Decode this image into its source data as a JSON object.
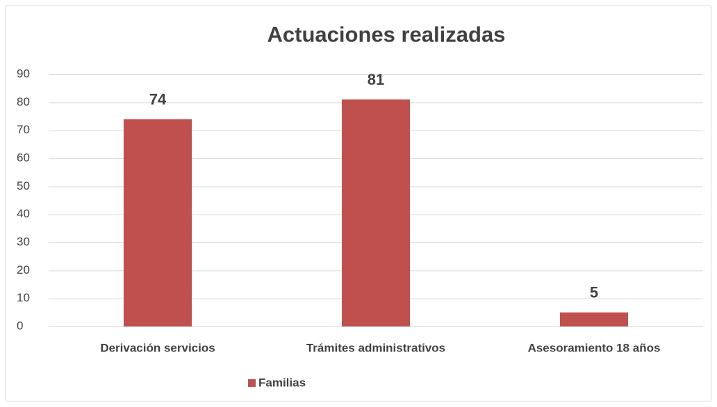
{
  "chart_data": {
    "type": "bar",
    "title": "Actuaciones realizadas",
    "categories": [
      "Derivación servicios",
      "Trámites administrativos",
      "Asesoramiento 18 años"
    ],
    "series": [
      {
        "name": "Familias",
        "color": "#c0504d",
        "values": [
          74,
          81,
          5
        ]
      }
    ],
    "ylim": [
      0,
      90
    ],
    "yticks": [
      0,
      10,
      20,
      30,
      40,
      50,
      60,
      70,
      80,
      90
    ],
    "grid": true,
    "legend": "bottom"
  }
}
